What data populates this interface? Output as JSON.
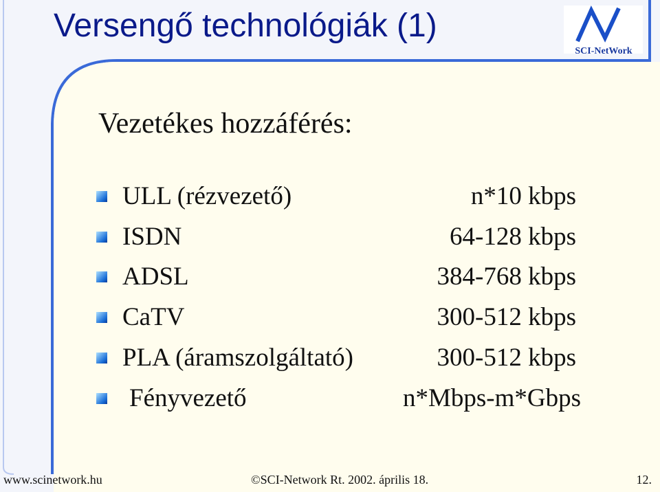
{
  "header": {
    "title": "Versengő technológiák (1)",
    "logo": "SCI-NetWork"
  },
  "subtitle": "Vezetékes hozzáférés:",
  "rows": [
    [
      "ULL (rézvezető)",
      "n*10 kbps"
    ],
    [
      "ISDN",
      "64-128 kbps"
    ],
    [
      "ADSL",
      "384-768 kbps"
    ],
    [
      "CaTV",
      "300-512 kbps"
    ],
    [
      "PLA (áramszolgáltató)",
      "300-512 kbps"
    ],
    [
      "Fényvezető",
      "n*Mbps-m*Gbps"
    ]
  ],
  "footer": {
    "url": "www.scinetwork.hu",
    "copyright": "©SCI-Network Rt. 2002. április 18.",
    "page": "12."
  }
}
